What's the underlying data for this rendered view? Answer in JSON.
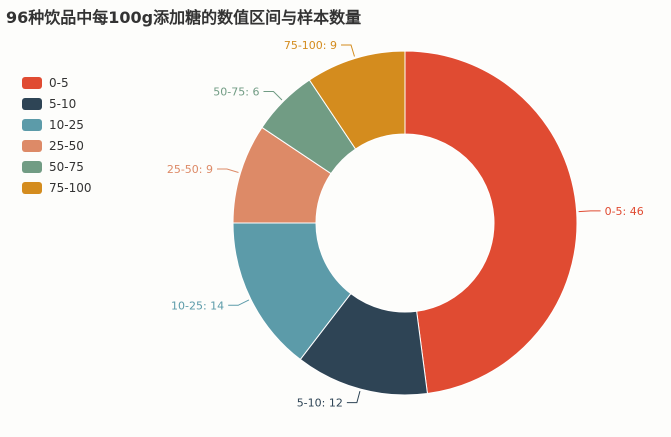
{
  "title": "96种饮品中每100g添加糖的数值区间与样本数量",
  "chart_data": {
    "type": "pie",
    "title": "96种饮品中每100g添加糖的数值区间与样本数量",
    "categories": [
      "0-5",
      "5-10",
      "10-25",
      "25-50",
      "50-75",
      "75-100"
    ],
    "values": [
      46,
      12,
      14,
      9,
      6,
      9
    ],
    "colors": [
      "#e04b32",
      "#2e4455",
      "#5c9ba9",
      "#dd8a67",
      "#719c84",
      "#d48c1e"
    ],
    "data_labels": [
      "0-5: 46",
      "5-10: 12",
      "10-25: 14",
      "25-50: 9",
      "50-75: 6",
      "75-100: 9"
    ],
    "legend_position": "left",
    "donut": true
  }
}
